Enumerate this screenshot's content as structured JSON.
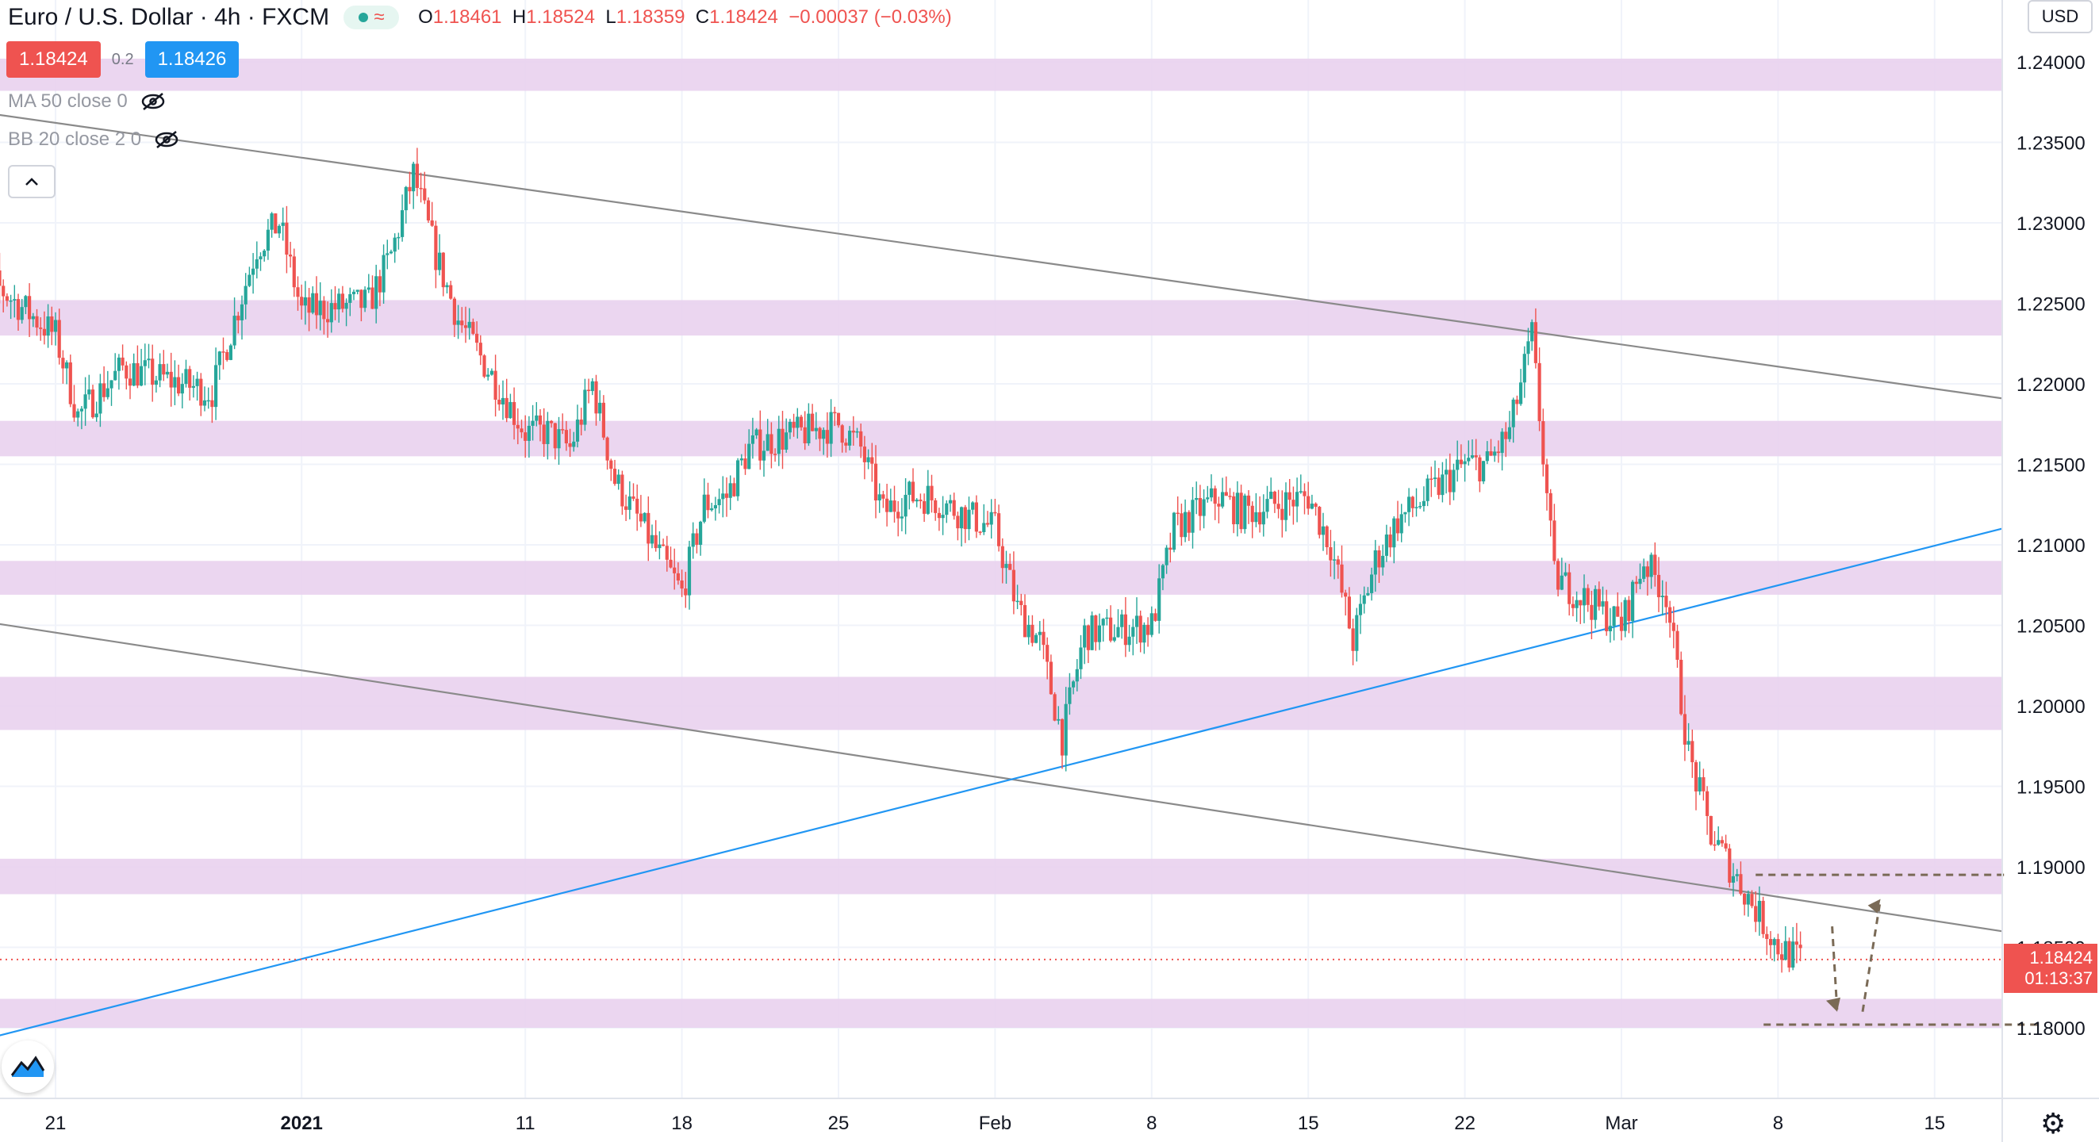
{
  "header": {
    "symbol_title": "Euro / U.S. Dollar · 4h · FXCM",
    "ohlc": {
      "open_label": "O",
      "open": "1.18461",
      "high_label": "H",
      "high": "1.18524",
      "low_label": "L",
      "low": "1.18359",
      "close_label": "C",
      "close": "1.18424",
      "change": "−0.00037 (−0.03%)"
    },
    "sell_price": "1.18424",
    "spread": "0.2",
    "buy_price": "1.18426",
    "indicator_ma": "MA 50 close 0",
    "indicator_bb": "BB 20 close 2 0",
    "currency_button": "USD",
    "collapse_icon": "chevron-up-icon",
    "logo_icon": "tradingview-logo-icon",
    "settings_icon": "gear-icon",
    "visibility_icon": "eye-off-icon"
  },
  "colors": {
    "up": "#26a69a",
    "down": "#ef5350",
    "zone": "#e9d2ee",
    "trend_gray": "#8a8a8a",
    "trend_blue": "#2196f3",
    "projection": "#7a6a56"
  },
  "chart_data": {
    "type": "candlestick",
    "symbol": "EURUSD",
    "interval": "4h",
    "y_range": [
      1.177,
      1.2415
    ],
    "y_ticks": [
      "1.24000",
      "1.23500",
      "1.23000",
      "1.22500",
      "1.22000",
      "1.21500",
      "1.21000",
      "1.20500",
      "1.20000",
      "1.19500",
      "1.19000",
      "1.18500",
      "1.18000"
    ],
    "x_ticks": [
      {
        "label": "21",
        "date": "2020-12-21"
      },
      {
        "label": "2021",
        "date": "2021-01-01"
      },
      {
        "label": "11",
        "date": "2021-01-11"
      },
      {
        "label": "18",
        "date": "2021-01-18"
      },
      {
        "label": "25",
        "date": "2021-01-25"
      },
      {
        "label": "Feb",
        "date": "2021-02-01"
      },
      {
        "label": "8",
        "date": "2021-02-08"
      },
      {
        "label": "15",
        "date": "2021-02-15"
      },
      {
        "label": "22",
        "date": "2021-02-22"
      },
      {
        "label": "Mar",
        "date": "2021-03-01"
      },
      {
        "label": "8",
        "date": "2021-03-08"
      },
      {
        "label": "15",
        "date": "2021-03-15"
      }
    ],
    "price_path": [
      [
        "2020-12-17",
        1.224
      ],
      [
        "2020-12-18",
        1.2265
      ],
      [
        "2020-12-21",
        1.223
      ],
      [
        "2020-12-22",
        1.218
      ],
      [
        "2020-12-23",
        1.2195
      ],
      [
        "2020-12-24",
        1.221
      ],
      [
        "2020-12-28",
        1.2195
      ],
      [
        "2020-12-29",
        1.224
      ],
      [
        "2020-12-30",
        1.2285
      ],
      [
        "2020-12-31",
        1.23
      ],
      [
        "2021-01-01",
        1.2245
      ],
      [
        "2021-01-04",
        1.225
      ],
      [
        "2021-01-05",
        1.228
      ],
      [
        "2021-01-06",
        1.233
      ],
      [
        "2021-01-07",
        1.228
      ],
      [
        "2021-01-08",
        1.224
      ],
      [
        "2021-01-11",
        1.217
      ],
      [
        "2021-01-12",
        1.217
      ],
      [
        "2021-01-13",
        1.216
      ],
      [
        "2021-01-14",
        1.22
      ],
      [
        "2021-01-15",
        1.214
      ],
      [
        "2021-01-18",
        1.207
      ],
      [
        "2021-01-19",
        1.2125
      ],
      [
        "2021-01-20",
        1.213
      ],
      [
        "2021-01-21",
        1.216
      ],
      [
        "2021-01-22",
        1.2165
      ],
      [
        "2021-01-25",
        1.2175
      ],
      [
        "2021-01-26",
        1.216
      ],
      [
        "2021-01-27",
        1.212
      ],
      [
        "2021-01-28",
        1.213
      ],
      [
        "2021-01-29",
        1.213
      ],
      [
        "2021-02-01",
        1.211
      ],
      [
        "2021-02-02",
        1.206
      ],
      [
        "2021-02-03",
        1.204
      ],
      [
        "2021-02-04",
        1.198
      ],
      [
        "2021-02-05",
        1.2045
      ],
      [
        "2021-02-08",
        1.205
      ],
      [
        "2021-02-09",
        1.211
      ],
      [
        "2021-02-10",
        1.212
      ],
      [
        "2021-02-11",
        1.213
      ],
      [
        "2021-02-12",
        1.212
      ],
      [
        "2021-02-15",
        1.213
      ],
      [
        "2021-02-16",
        1.21
      ],
      [
        "2021-02-17",
        1.204
      ],
      [
        "2021-02-18",
        1.209
      ],
      [
        "2021-02-19",
        1.2115
      ],
      [
        "2021-02-22",
        1.215
      ],
      [
        "2021-02-23",
        1.215
      ],
      [
        "2021-02-24",
        1.217
      ],
      [
        "2021-02-25",
        1.223
      ],
      [
        "2021-02-26",
        1.208
      ],
      [
        "2021-03-01",
        1.205
      ],
      [
        "2021-03-02",
        1.209
      ],
      [
        "2021-03-03",
        1.207
      ],
      [
        "2021-03-04",
        1.197
      ],
      [
        "2021-03-05",
        1.192
      ],
      [
        "2021-03-08",
        1.185
      ],
      [
        "2021-03-09",
        1.1842
      ]
    ],
    "last_price": {
      "value": "1.18424",
      "countdown": "01:13:37"
    },
    "zones": [
      {
        "from": 1.2382,
        "to": 1.2402
      },
      {
        "from": 1.223,
        "to": 1.2252
      },
      {
        "from": 1.2155,
        "to": 1.2177
      },
      {
        "from": 1.2069,
        "to": 1.209
      },
      {
        "from": 1.1985,
        "to": 1.2018
      },
      {
        "from": 1.1883,
        "to": 1.1905
      },
      {
        "from": 1.18,
        "to": 1.1818
      }
    ],
    "trendlines": [
      {
        "kind": "resistance",
        "from": [
          "2020-12-17",
          1.237
        ],
        "to": [
          "2021-03-18",
          1.2191
        ]
      },
      {
        "kind": "support",
        "from": [
          "2020-12-17",
          1.2054
        ],
        "to": [
          "2021-03-18",
          1.186
        ]
      },
      {
        "kind": "rising",
        "from": [
          "2020-12-17",
          1.179
        ],
        "to": [
          "2021-03-18",
          1.211
        ]
      }
    ],
    "projection": {
      "levels": [
        1.1895,
        1.1802
      ],
      "path": [
        [
          "2021-03-09",
          1.1863
        ],
        [
          "2021-03-11",
          1.181
        ],
        [
          "2021-03-14",
          1.188
        ]
      ]
    }
  }
}
